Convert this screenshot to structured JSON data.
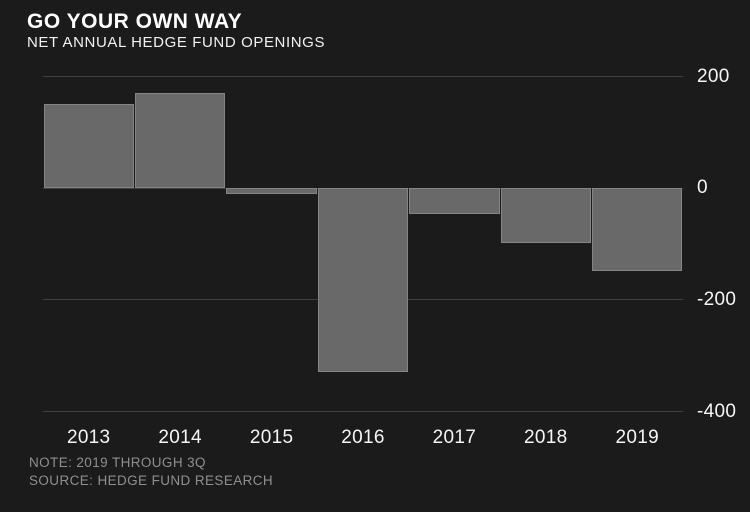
{
  "header": {
    "title": "GO YOUR OWN WAY",
    "subtitle": "NET ANNUAL HEDGE FUND OPENINGS"
  },
  "chart_data": {
    "type": "bar",
    "title": "GO YOUR OWN WAY",
    "subtitle": "NET ANNUAL HEDGE FUND OPENINGS",
    "categories": [
      "2013",
      "2014",
      "2015",
      "2016",
      "2017",
      "2018",
      "2019"
    ],
    "values": [
      150,
      170,
      -12,
      -330,
      -48,
      -100,
      -150
    ],
    "xlabel": "",
    "ylabel": "",
    "ylim": [
      -400,
      200
    ],
    "yticks": [
      200,
      0,
      -200,
      -400
    ],
    "grid": true,
    "legend": false,
    "colors": {
      "background": "#1b1b1b",
      "bar": "#696969",
      "bar_outline": "#9e9e9e",
      "gridline": "#404040",
      "title_text": "#ffffff",
      "axis_text": "#f5f5f5",
      "footer_text": "#8f8f8f"
    }
  },
  "footer": {
    "note": "NOTE: 2019 THROUGH 3Q",
    "source": "SOURCE: HEDGE FUND RESEARCH"
  }
}
